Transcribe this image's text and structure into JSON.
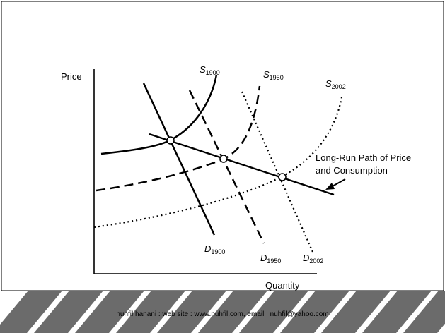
{
  "axes": {
    "y_label": "Price",
    "x_label": "Quantity"
  },
  "curves": {
    "s1900": {
      "letter": "S",
      "sub": "1900"
    },
    "s1950": {
      "letter": "S",
      "sub": "1950"
    },
    "s2002": {
      "letter": "S",
      "sub": "2002"
    },
    "d1900": {
      "letter": "D",
      "sub": "1900"
    },
    "d1950": {
      "letter": "D",
      "sub": "1950"
    },
    "d2002": {
      "letter": "D",
      "sub": "2002"
    }
  },
  "annotation": {
    "line1": "Long-Run Path of Price",
    "line2": "and Consumption"
  },
  "footer": {
    "text": "nuhfil hanani : web site : www.nuhfil.com, email : nuhfil@yahoo.com"
  },
  "colors": {
    "stripe": "#6b6b6b",
    "background": "#ffffff",
    "ink": "#000000"
  }
}
